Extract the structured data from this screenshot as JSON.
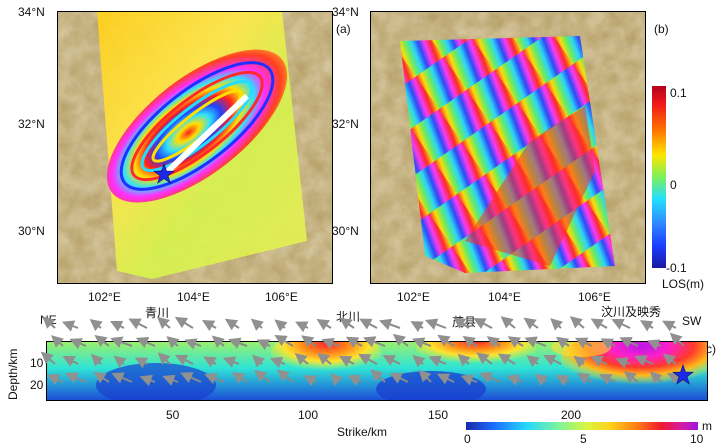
{
  "panel_a": {
    "label": "(a)",
    "lat_ticks": [
      "34°N",
      "32°N",
      "30°N"
    ],
    "lon_ticks": [
      "102°E",
      "104°E",
      "106°E"
    ]
  },
  "panel_b": {
    "label": "(b)",
    "lat_ticks": [
      "34°N",
      "32°N",
      "30°N"
    ],
    "lon_ticks": [
      "102°E",
      "104°E",
      "106°E"
    ]
  },
  "los_scale": {
    "max_label": "0.1",
    "mid_label": "0",
    "min_label": "-0.1",
    "unit_label": "LOS(m)"
  },
  "panel_c": {
    "label": "(c)",
    "ne_label": "NE",
    "sw_label": "SW",
    "place_labels": [
      "青川",
      "北川",
      "茂县",
      "汶川及映秀"
    ],
    "ylabel": "Depth/km",
    "y_ticks": [
      "10",
      "20"
    ],
    "xlabel": "Strike/km",
    "x_ticks": [
      "50",
      "100",
      "150",
      "200"
    ],
    "slip_scale": {
      "min_label": "0",
      "mid_label": "5",
      "max_label": "10",
      "unit": "m"
    }
  },
  "colors": {
    "accent_star": "#1a2ae6",
    "fault_trace": "#ffffff",
    "frame": "#000000"
  }
}
